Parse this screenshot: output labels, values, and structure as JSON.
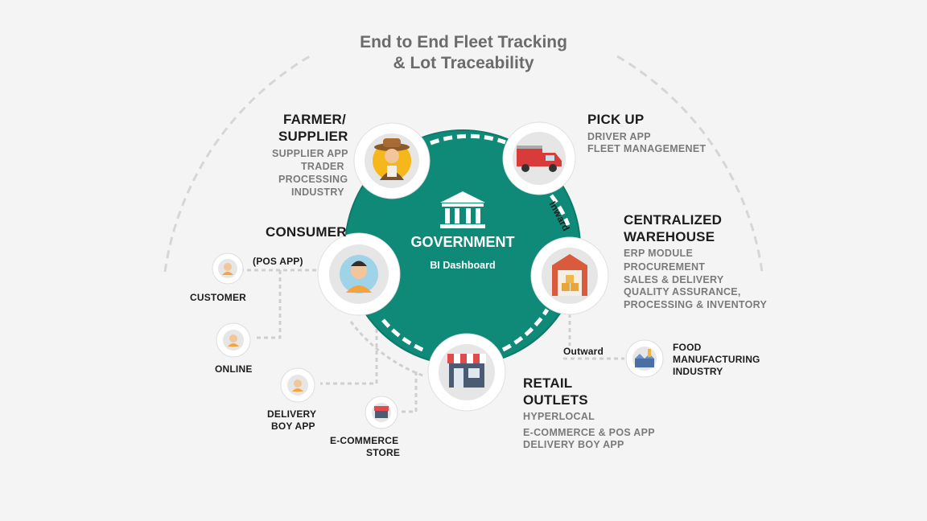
{
  "title": {
    "line1": "End to End Fleet Tracking",
    "line2": "& Lot Traceability"
  },
  "center": {
    "title": "GOVERNMENT",
    "subtitle": "BI Dashboard",
    "icon": "government-building-icon"
  },
  "colors": {
    "teal": "#0f8a78",
    "teal_dark": "#0a6e60",
    "background": "#f4f4f4",
    "heading": "#1c1c1c",
    "subtext": "#7a7a7a"
  },
  "farmer": {
    "heading_line1": "FARMER/",
    "heading_line2": "SUPPLIER",
    "items": [
      "SUPPLIER APP",
      "TRADER",
      "PROCESSING",
      "INDUSTRY"
    ],
    "icon": "farmer-icon"
  },
  "pickup": {
    "heading": "PICK UP",
    "items": [
      "DRIVER APP",
      "FLEET MANAGEMENET"
    ],
    "icon": "truck-icon"
  },
  "warehouse": {
    "heading_line1": "CENTRALIZED",
    "heading_line2": "WAREHOUSE",
    "items": [
      "ERP MODULE",
      "PROCUREMENT",
      "SALES & DELIVERY",
      "QUALITY ASSURANCE,",
      "PROCESSING & INVENTORY"
    ],
    "icon": "warehouse-icon"
  },
  "retail": {
    "heading_line1": "RETAIL",
    "heading_line2": "OUTLETS",
    "items": [
      "HYPERLOCAL",
      "E-COMMERCE & POS APP",
      "DELIVERY BOY APP"
    ],
    "icon": "shop-icon"
  },
  "consumer": {
    "heading": "CONSUMER",
    "pos_label": "(POS APP)",
    "icon": "consumer-icon"
  },
  "satellites": {
    "customer": "CUSTOMER",
    "online": "ONLINE",
    "delivery_line1": "DELIVERY",
    "delivery_line2": "BOY APP",
    "ecommerce_line1": "E-COMMERCE",
    "ecommerce_line2": "STORE"
  },
  "food": {
    "line1": "FOOD",
    "line2": "MANUFACTURING",
    "line3": "INDUSTRY",
    "icon": "factory-icon"
  },
  "flow": {
    "inward": "Inward",
    "outward": "Outward"
  }
}
